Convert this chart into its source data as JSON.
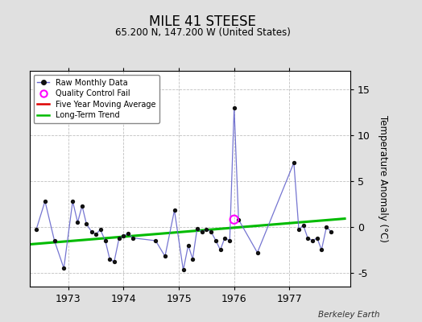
{
  "title": "MILE 41 STEESE",
  "subtitle": "65.200 N, 147.200 W (United States)",
  "ylabel": "Temperature Anomaly (°C)",
  "attribution": "Berkeley Earth",
  "ylim": [
    -6.5,
    17
  ],
  "yticks": [
    -5,
    0,
    5,
    10,
    15
  ],
  "bg_color": "#e0e0e0",
  "plot_bg": "#ffffff",
  "raw_x": [
    1972.42,
    1972.58,
    1972.75,
    1972.92,
    1973.08,
    1973.17,
    1973.25,
    1973.33,
    1973.42,
    1973.5,
    1973.58,
    1973.67,
    1973.75,
    1973.83,
    1973.92,
    1974.0,
    1974.08,
    1974.17,
    1974.58,
    1974.75,
    1974.92,
    1975.08,
    1975.17,
    1975.25,
    1975.33,
    1975.42,
    1975.5,
    1975.58,
    1975.67,
    1975.75,
    1975.83,
    1975.92,
    1976.0,
    1976.08,
    1976.42,
    1977.08,
    1977.17,
    1977.25,
    1977.33,
    1977.42,
    1977.5,
    1977.58,
    1977.67,
    1977.75
  ],
  "raw_y": [
    -0.3,
    2.8,
    -1.5,
    -4.5,
    2.8,
    0.5,
    2.3,
    0.3,
    -0.5,
    -0.8,
    -0.3,
    -1.5,
    -3.5,
    -3.8,
    -1.2,
    -1.0,
    -0.7,
    -1.2,
    -1.5,
    -3.2,
    1.8,
    -4.7,
    -2.0,
    -3.5,
    -0.2,
    -0.5,
    -0.3,
    -0.5,
    -1.5,
    -2.5,
    -1.2,
    -1.5,
    13.0,
    0.8,
    -2.8,
    7.0,
    -0.3,
    0.2,
    -1.2,
    -1.5,
    -1.2,
    -2.5,
    0.0,
    -0.5
  ],
  "qc_fail_x": [
    1976.0
  ],
  "qc_fail_y": [
    0.8
  ],
  "trend_x": [
    1972.3,
    1978.0
  ],
  "trend_y": [
    -1.9,
    0.9
  ],
  "xlim": [
    1972.3,
    1978.1
  ],
  "xticks": [
    1973,
    1974,
    1975,
    1976,
    1977
  ],
  "grid_color": "#c0c0c0",
  "line_color": "#6666cc",
  "dot_color": "#111111",
  "trend_color": "#00bb00",
  "ma_color": "#dd0000",
  "qc_color": "#ff00ff"
}
